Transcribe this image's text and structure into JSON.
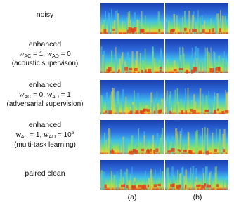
{
  "rows": [
    {
      "title": "noisy"
    },
    {
      "title": "enhanced",
      "formula": [
        "w",
        "AC",
        " = 1, ",
        "w",
        "AD",
        " = 0"
      ],
      "note": "(acoustic supervison)"
    },
    {
      "title": "enhanced",
      "formula": [
        "w",
        "AC",
        " = 0, ",
        "w",
        "AD",
        " = 1"
      ],
      "note": "(adversarial supervision)"
    },
    {
      "title": "enhanced",
      "formula": [
        "w",
        "AC",
        " = 1, ",
        "w",
        "AD",
        " = 10",
        "5"
      ],
      "note": "(multi-task learning)"
    },
    {
      "title": "paired clean"
    }
  ],
  "columns": [
    "(a)",
    "(b)"
  ]
}
